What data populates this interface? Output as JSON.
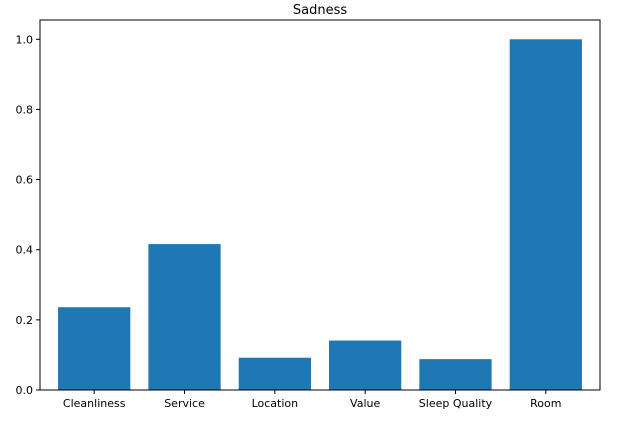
{
  "chart_data": {
    "type": "bar",
    "title": "Sadness",
    "xlabel": "",
    "ylabel": "",
    "categories": [
      "Cleanliness",
      "Service",
      "Location",
      "Value",
      "Sleep Quality",
      "Room"
    ],
    "values": [
      0.236,
      0.416,
      0.092,
      0.141,
      0.088,
      1.0
    ],
    "ylim": [
      0,
      1.055
    ],
    "yticks": [
      0.0,
      0.2,
      0.4,
      0.6,
      0.8,
      1.0
    ],
    "ytick_labels": [
      "0.0",
      "0.2",
      "0.4",
      "0.6",
      "0.8",
      "1.0"
    ],
    "bar_color": "#1f77b4",
    "grid": false,
    "legend": "none"
  }
}
